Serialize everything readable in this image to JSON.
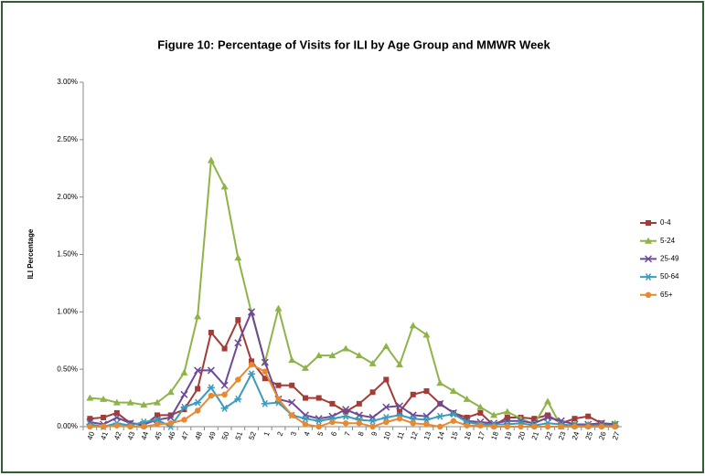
{
  "chart_data": {
    "type": "line",
    "title": "Figure 10: Percentage of Visits for ILI by Age Group and MMWR Week",
    "y_label": "ILI Percentage",
    "categories": [
      "40",
      "41",
      "42",
      "43",
      "44",
      "45",
      "46",
      "47",
      "48",
      "49",
      "50",
      "51",
      "52",
      "1",
      "2",
      "3",
      "4",
      "5",
      "6",
      "7",
      "8",
      "9",
      "10",
      "11",
      "12",
      "13",
      "14",
      "15",
      "16",
      "17",
      "18",
      "19",
      "20",
      "21",
      "22",
      "23",
      "24",
      "25",
      "26",
      "27"
    ],
    "ylim": [
      0,
      3
    ],
    "yticks": [
      {
        "value": 0,
        "label": "0.00%"
      },
      {
        "value": 0.5,
        "label": "0.50%"
      },
      {
        "value": 1,
        "label": "1.00%"
      },
      {
        "value": 1.5,
        "label": "1.50%"
      },
      {
        "value": 2,
        "label": "2.00%"
      },
      {
        "value": 2.5,
        "label": "2.50%"
      },
      {
        "value": 3,
        "label": "3.00%"
      }
    ],
    "grid": false,
    "legend": "right",
    "series": [
      {
        "name": "0-4",
        "color": "#a33b36",
        "marker": "square",
        "values": [
          0.07,
          0.08,
          0.12,
          0.03,
          0.01,
          0.1,
          0.1,
          0.15,
          0.33,
          0.82,
          0.68,
          0.93,
          0.57,
          0.42,
          0.36,
          0.36,
          0.25,
          0.25,
          0.2,
          0.13,
          0.2,
          0.3,
          0.41,
          0.13,
          0.28,
          0.31,
          0.2,
          0.12,
          0.08,
          0.12,
          0.01,
          0.08,
          0.08,
          0.07,
          0.1,
          0.03,
          0.07,
          0.09,
          0.03,
          0.02
        ]
      },
      {
        "name": "5-24",
        "color": "#8eb448",
        "marker": "triangle",
        "values": [
          0.25,
          0.24,
          0.21,
          0.21,
          0.19,
          0.21,
          0.3,
          0.47,
          0.96,
          2.32,
          2.09,
          1.47,
          0.99,
          0.56,
          1.03,
          0.58,
          0.51,
          0.62,
          0.62,
          0.68,
          0.62,
          0.55,
          0.7,
          0.54,
          0.88,
          0.8,
          0.38,
          0.31,
          0.24,
          0.17,
          0.1,
          0.13,
          0.07,
          0.02,
          0.22,
          0.0,
          0.02,
          0.02,
          0.02,
          0.03
        ]
      },
      {
        "name": "25-49",
        "color": "#6d4a96",
        "marker": "x",
        "values": [
          0.04,
          0.02,
          0.08,
          0.03,
          0.02,
          0.06,
          0.08,
          0.28,
          0.49,
          0.49,
          0.36,
          0.73,
          1.0,
          0.56,
          0.24,
          0.21,
          0.1,
          0.07,
          0.09,
          0.15,
          0.1,
          0.08,
          0.17,
          0.18,
          0.1,
          0.09,
          0.2,
          0.12,
          0.05,
          0.04,
          0.03,
          0.05,
          0.05,
          0.03,
          0.08,
          0.05,
          0.02,
          0.02,
          0.03,
          0.02
        ]
      },
      {
        "name": "50-64",
        "color": "#3a9bbf",
        "marker": "star",
        "values": [
          0.02,
          0.0,
          0.03,
          0.01,
          0.04,
          0.06,
          0.0,
          0.17,
          0.21,
          0.34,
          0.16,
          0.24,
          0.46,
          0.2,
          0.21,
          0.1,
          0.07,
          0.05,
          0.07,
          0.09,
          0.06,
          0.05,
          0.08,
          0.1,
          0.07,
          0.06,
          0.09,
          0.11,
          0.04,
          0.02,
          0.02,
          0.02,
          0.03,
          0.01,
          0.03,
          0.02,
          0.01,
          0.01,
          0.01,
          0.01
        ]
      },
      {
        "name": "65+",
        "color": "#e8892f",
        "marker": "circle",
        "values": [
          0.0,
          0.0,
          0.01,
          0.0,
          0.0,
          0.02,
          0.03,
          0.06,
          0.14,
          0.27,
          0.28,
          0.41,
          0.54,
          0.48,
          0.24,
          0.1,
          0.02,
          0.0,
          0.04,
          0.03,
          0.03,
          0.0,
          0.04,
          0.07,
          0.03,
          0.02,
          0.0,
          0.05,
          0.01,
          0.01,
          0.0,
          0.0,
          0.0,
          0.0,
          0.0,
          0.0,
          0.0,
          0.0,
          0.0,
          0.0
        ]
      }
    ]
  }
}
